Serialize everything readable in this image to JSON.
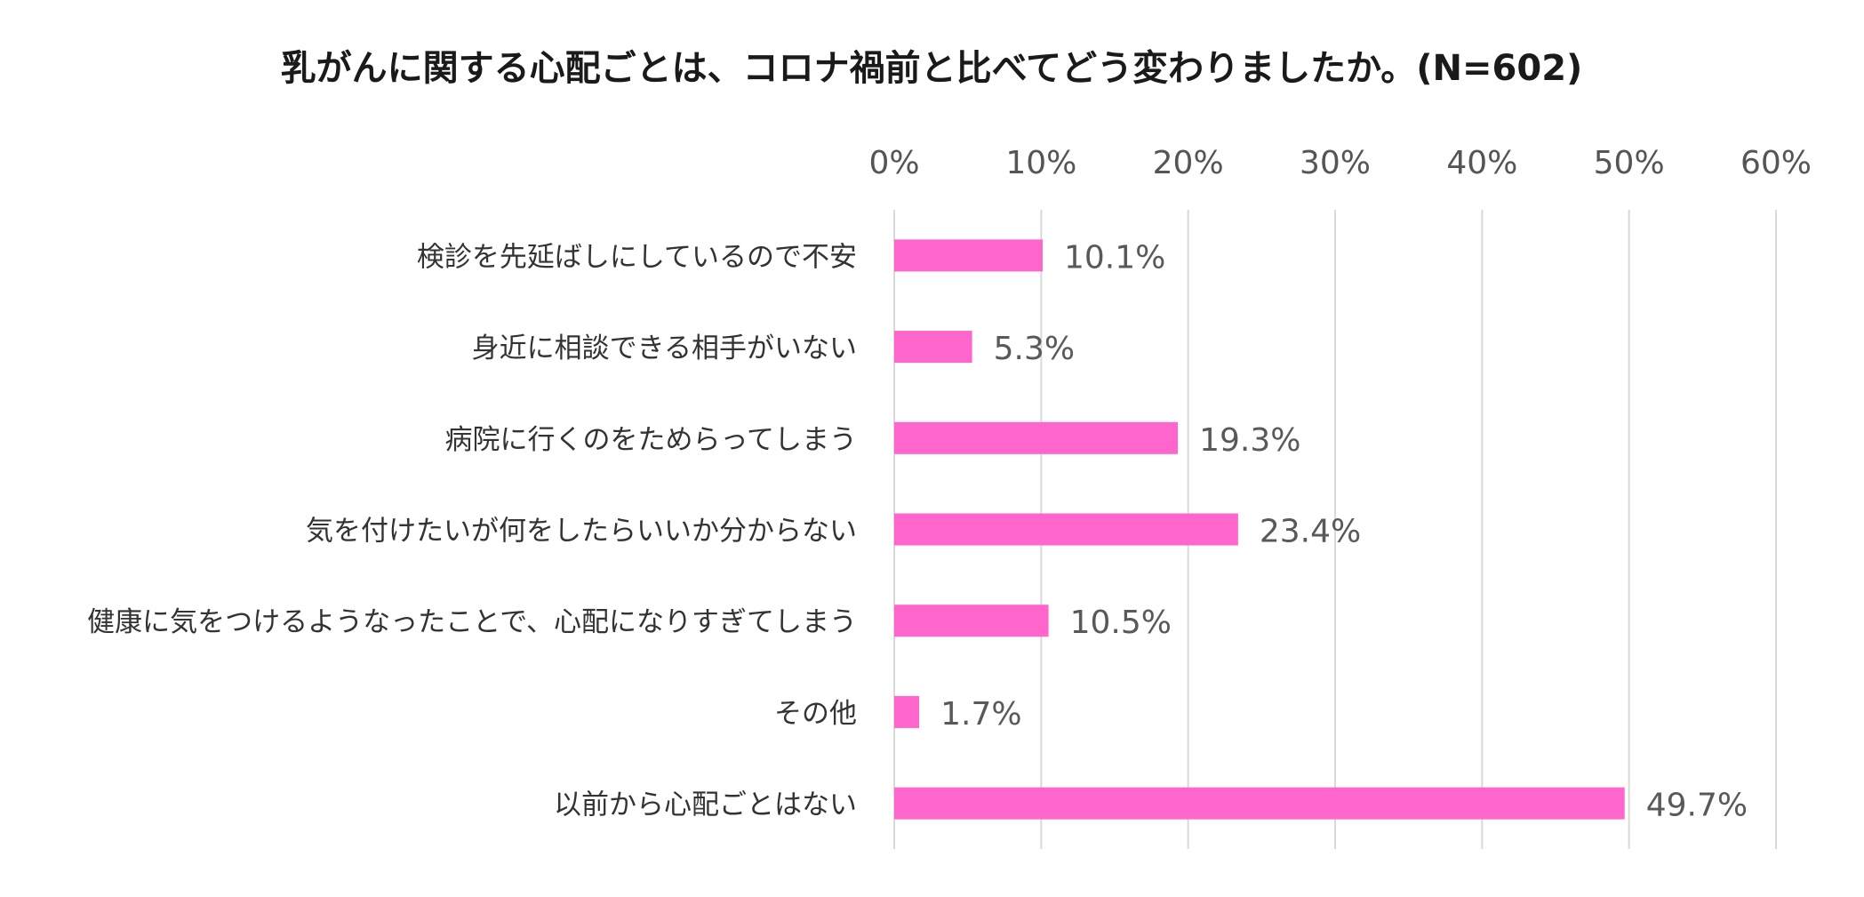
{
  "chart_data": {
    "type": "bar",
    "orientation": "horizontal",
    "title": "乳がんに関する心配ごとは、コロナ禍前と比べてどう変わりましたか。(N=602)",
    "categories": [
      "検診を先延ばしにしているので不安",
      "身近に相談できる相手がいない",
      "病院に行くのをためらってしまう",
      "気を付けたいが何をしたらいいか分からない",
      "健康に気をつけるようなったことで、心配になりすぎてしまう",
      "その他",
      "以前から心配ごとはない"
    ],
    "values": [
      10.1,
      5.3,
      19.3,
      23.4,
      10.5,
      1.7,
      49.7
    ],
    "data_labels": [
      "10.1%",
      "5.3%",
      "19.3%",
      "23.4%",
      "10.5%",
      "1.7%",
      "49.7%"
    ],
    "xlim": [
      0,
      60
    ],
    "x_ticks": [
      0,
      10,
      20,
      30,
      40,
      50,
      60
    ],
    "x_tick_labels": [
      "0%",
      "10%",
      "20%",
      "30%",
      "40%",
      "50%",
      "60%"
    ],
    "axis_position": "top",
    "grid": true,
    "legend": "none",
    "bar_color": "#FF66CC",
    "grid_color": "#D9D9D9"
  }
}
